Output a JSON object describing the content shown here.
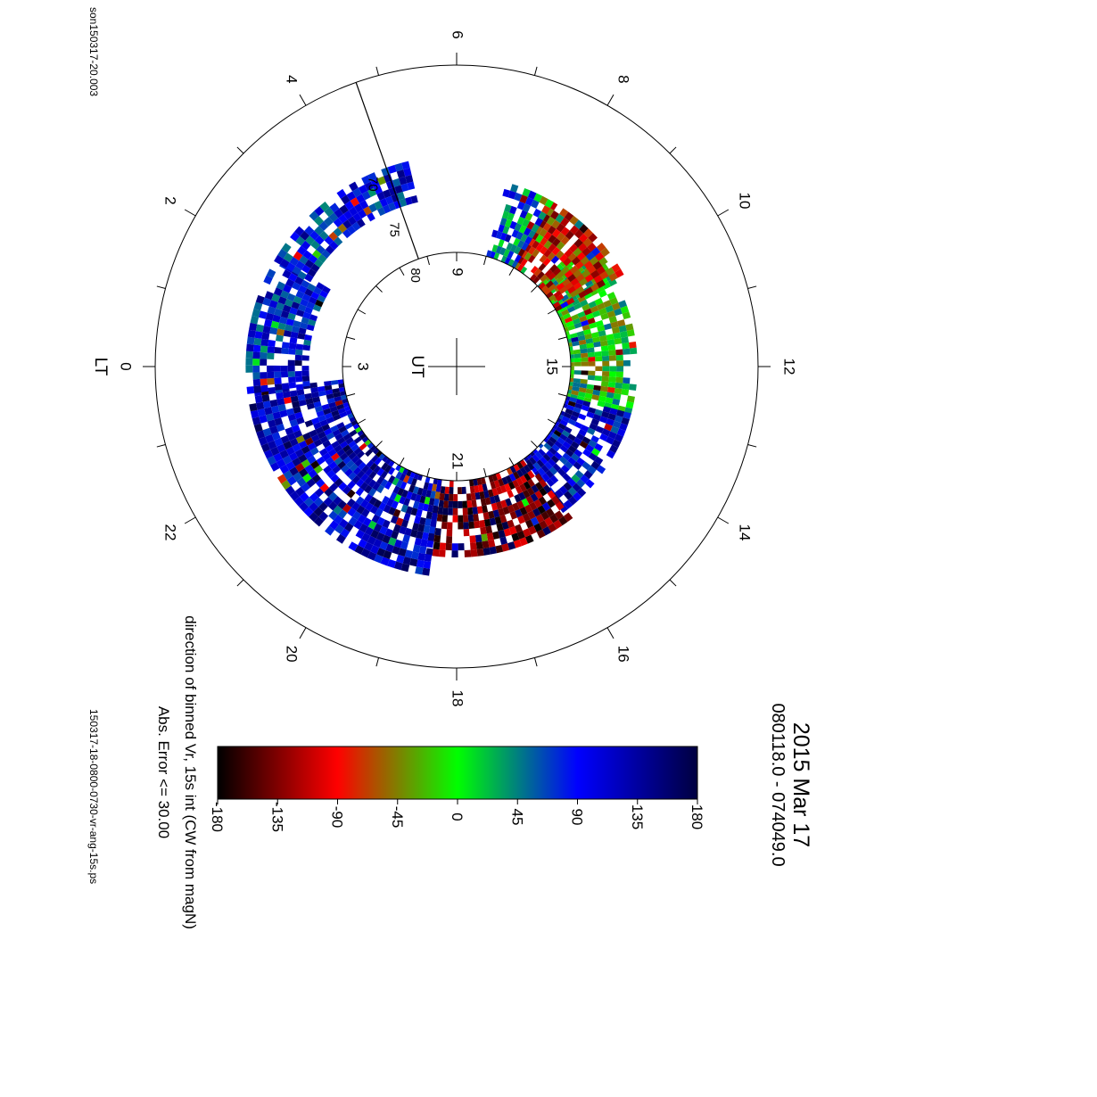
{
  "chart_data": {
    "type": "heatmap",
    "title": "2015 Mar 17",
    "subtitle": "080118.0 - 074049.0",
    "file_id_top": "son150317-20.003",
    "file_id_bottom": "150317-18-0800-0730-vr-ang-15s.ps",
    "lt_axis_label": "LT",
    "ut_axis_label": "UT",
    "lt_ticks": [
      "0",
      "2",
      "4",
      "6",
      "8",
      "10",
      "12",
      "14",
      "16",
      "18",
      "20",
      "22"
    ],
    "ut_ticks": [
      "3",
      "9",
      "15",
      "21"
    ],
    "latitude_ticks": [
      "70",
      "75",
      "80"
    ],
    "colorbar": {
      "label": "direction of binned Vr, 15s int (CW from magN)",
      "min": -180,
      "max": 180,
      "ticks": [
        "-180",
        "-135",
        "-90",
        "-45",
        "0",
        "45",
        "90",
        "135",
        "180"
      ],
      "stops": [
        "#000000",
        "#ff0000",
        "#00ff00",
        "#0000ff",
        "#000040"
      ]
    },
    "error_note": "Abs. Error <= 30.00",
    "sectors": [
      {
        "lt_range": [
          9.0,
          13.0
        ],
        "lat_range": [
          72,
          80
        ],
        "dominant_value": 0,
        "description": "green/orange radial streaks"
      },
      {
        "lt_range": [
          8.0,
          10.0
        ],
        "lat_range": [
          71,
          80
        ],
        "dominant_value": -90
      },
      {
        "lt_range": [
          7.0,
          8.0
        ],
        "lat_range": [
          71,
          79
        ],
        "dominant_value": 60
      },
      {
        "lt_range": [
          13.0,
          15.5
        ],
        "lat_range": [
          72,
          80
        ],
        "dominant_value": 110
      },
      {
        "lt_range": [
          15.5,
          18.5
        ],
        "lat_range": [
          71,
          79
        ],
        "dominant_value": -150
      },
      {
        "lt_range": [
          18.5,
          23.5
        ],
        "lat_range": [
          69,
          80
        ],
        "dominant_value": 120
      },
      {
        "lt_range": [
          23.5,
          2.0
        ],
        "lat_range": [
          69,
          75
        ],
        "dominant_value": 100
      },
      {
        "lt_range": [
          2.0,
          5.0
        ],
        "lat_range": [
          69,
          73
        ],
        "dominant_value": 95
      }
    ]
  }
}
